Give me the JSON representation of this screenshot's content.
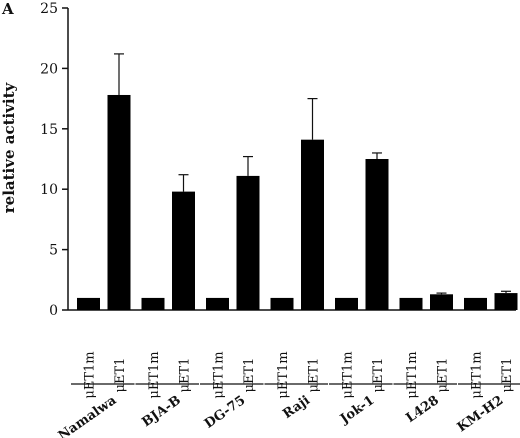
{
  "panel_label": "A",
  "chart_data": {
    "type": "bar",
    "ylabel": "relative activity",
    "ylim": [
      0,
      25
    ],
    "yticks": [
      0,
      5,
      10,
      15,
      20,
      25
    ],
    "bar_labels": [
      "μET1m",
      "μET1"
    ],
    "groups": [
      {
        "name": "Namalwa",
        "values": [
          1.0,
          17.8
        ],
        "errors": [
          0,
          3.4
        ]
      },
      {
        "name": "BJA-B",
        "values": [
          1.0,
          9.8
        ],
        "errors": [
          0,
          1.4
        ]
      },
      {
        "name": "DG-75",
        "values": [
          1.0,
          11.1
        ],
        "errors": [
          0,
          1.6
        ]
      },
      {
        "name": "Raji",
        "values": [
          1.0,
          14.1
        ],
        "errors": [
          0,
          3.4
        ]
      },
      {
        "name": "Jok-1",
        "values": [
          1.0,
          12.5
        ],
        "errors": [
          0,
          0.5
        ]
      },
      {
        "name": "L428",
        "values": [
          1.0,
          1.3
        ],
        "errors": [
          0,
          0.1
        ]
      },
      {
        "name": "KM-H2",
        "values": [
          1.0,
          1.4
        ],
        "errors": [
          0,
          0.15
        ]
      }
    ],
    "colors": {
      "bar": "#000000",
      "axis": "#111111"
    }
  }
}
